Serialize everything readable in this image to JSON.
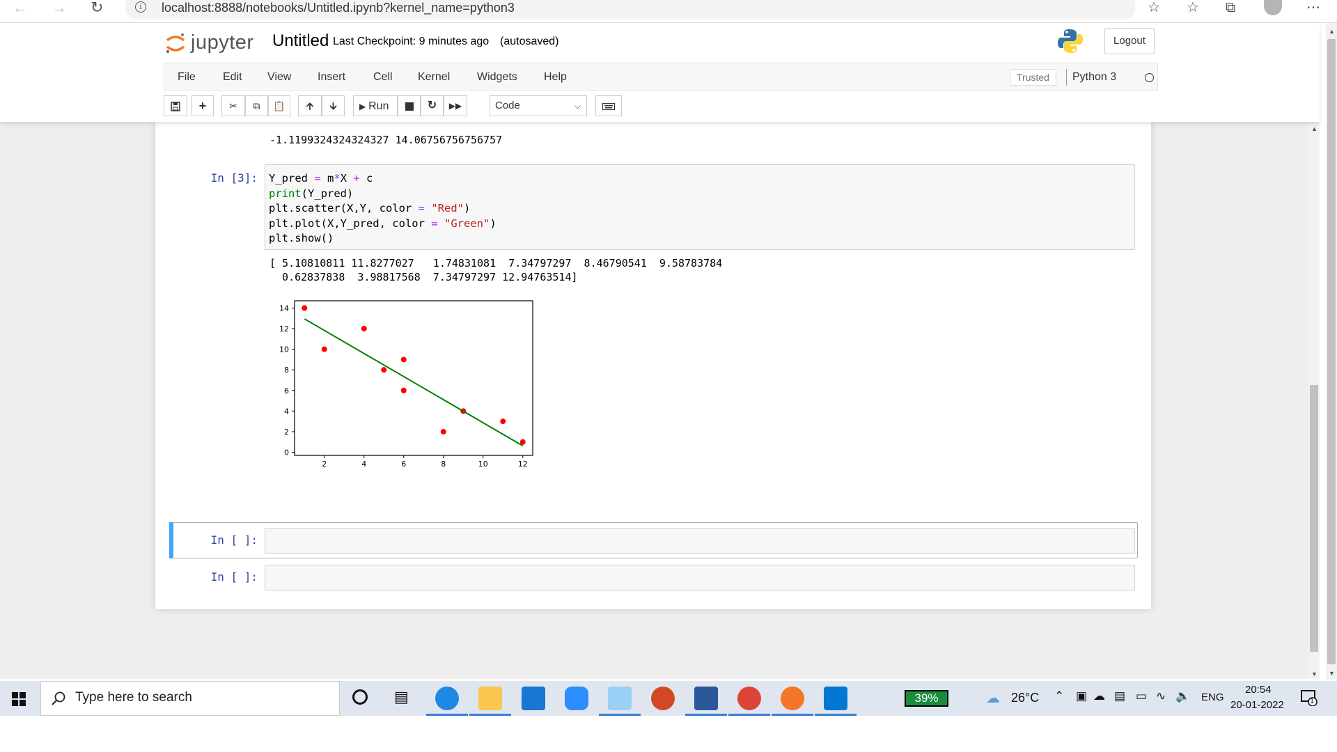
{
  "browser": {
    "url": "localhost:8888/notebooks/Untitled.ipynb?kernel_name=python3"
  },
  "header": {
    "logo_text": "jupyter",
    "notebook_title": "Untitled",
    "checkpoint": "Last Checkpoint: 9 minutes ago",
    "autosave": "(autosaved)",
    "logout_label": "Logout"
  },
  "menu": {
    "items": [
      "File",
      "Edit",
      "View",
      "Insert",
      "Cell",
      "Kernel",
      "Widgets",
      "Help"
    ],
    "trusted": "Trusted",
    "kernel": "Python 3"
  },
  "toolbar": {
    "run_label": "Run",
    "cell_type": "Code"
  },
  "cells": {
    "prev_output": "-1.1199324324324327 14.06756756756757",
    "cell3_prompt": "In [3]:",
    "cell3_code": [
      "Y_pred = m*X + c",
      "print(Y_pred)",
      "plt.scatter(X,Y, color = \"Red\")",
      "plt.plot(X,Y_pred, color = \"Green\")",
      "plt.show()"
    ],
    "cell3_output_line1": "[ 5.10810811 11.8277027   1.74831081  7.34797297  8.46790541  9.58783784",
    "cell3_output_line2": "  0.62837838  3.98817568  7.34797297 12.94763514]",
    "empty_prompt_1": "In [ ]:",
    "empty_prompt_2": "In [ ]:"
  },
  "chart_data": {
    "type": "scatter",
    "xlim": [
      0.5,
      12.5
    ],
    "ylim": [
      -0.3,
      14.7
    ],
    "xticks": [
      2,
      4,
      6,
      8,
      10,
      12
    ],
    "yticks": [
      0,
      2,
      4,
      6,
      8,
      10,
      12,
      14
    ],
    "series": [
      {
        "kind": "scatter",
        "color": "#ff0000",
        "points": [
          [
            1,
            14
          ],
          [
            2,
            10
          ],
          [
            4,
            12
          ],
          [
            5,
            8
          ],
          [
            6,
            6
          ],
          [
            6,
            9
          ],
          [
            8,
            2
          ],
          [
            9,
            4
          ],
          [
            11,
            3
          ],
          [
            12,
            1
          ]
        ]
      },
      {
        "kind": "line",
        "color": "#008000",
        "points": [
          [
            1,
            12.94763514
          ],
          [
            12,
            0.62837838
          ]
        ]
      }
    ]
  },
  "taskbar": {
    "search_placeholder": "Type here to search",
    "battery": "39%",
    "weather": "26°C",
    "language": "ENG",
    "time": "20:54",
    "date": "20-01-2022",
    "notification_count": "1"
  }
}
